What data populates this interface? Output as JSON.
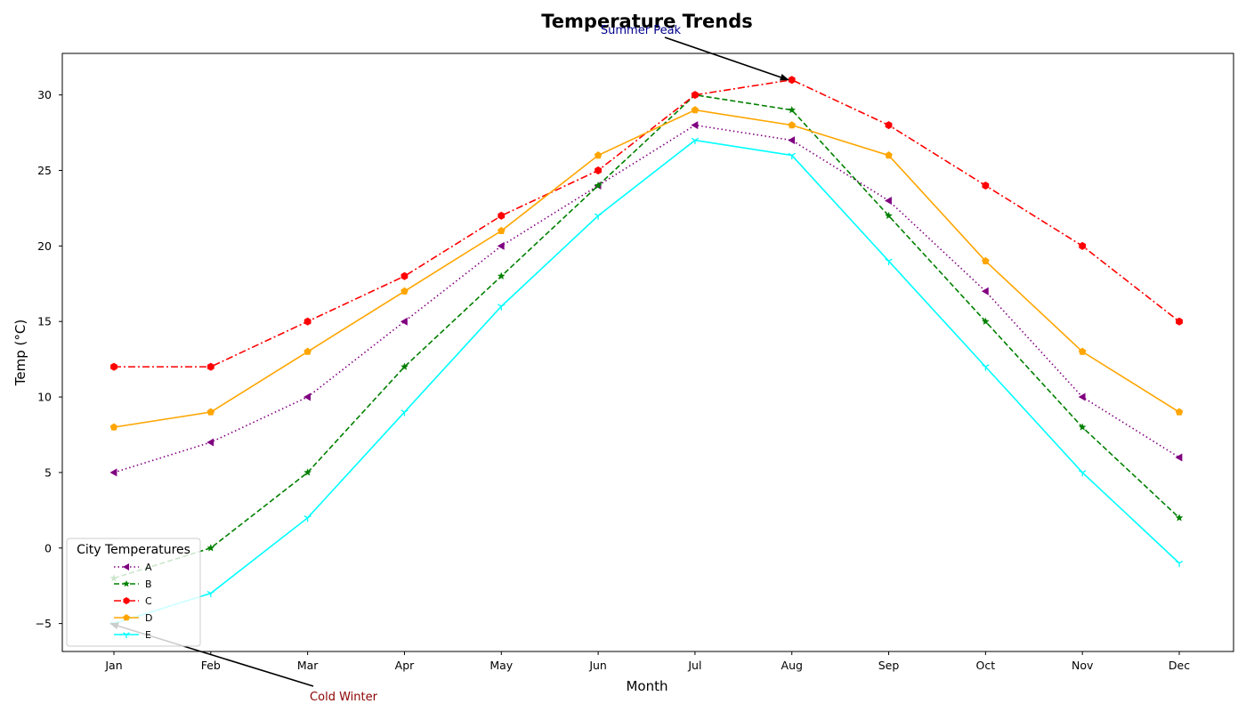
{
  "chart_data": {
    "type": "line",
    "title": "Temperature Trends",
    "xlabel": "Month",
    "ylabel": "Temp (°C)",
    "categories": [
      "Jan",
      "Feb",
      "Mar",
      "Apr",
      "May",
      "Jun",
      "Jul",
      "Aug",
      "Sep",
      "Oct",
      "Nov",
      "Dec"
    ],
    "ylim": [
      -6.85,
      32.75
    ],
    "yticks": [
      -5,
      0,
      5,
      10,
      15,
      20,
      25,
      30
    ],
    "ytick_labels": [
      "−5",
      "0",
      "5",
      "10",
      "15",
      "20",
      "25",
      "30"
    ],
    "grid": false,
    "legend": {
      "title": "City Temperatures",
      "location": "lower left"
    },
    "series": [
      {
        "name": "A",
        "color": "#800080",
        "linestyle": "dotted",
        "marker": "triangle-left",
        "values": [
          5,
          7,
          10,
          15,
          20,
          24,
          28,
          27,
          23,
          17,
          10,
          6
        ]
      },
      {
        "name": "B",
        "color": "#008000",
        "linestyle": "dashed",
        "marker": "star",
        "values": [
          -2,
          0,
          5,
          12,
          18,
          24,
          30,
          29,
          22,
          15,
          8,
          2
        ]
      },
      {
        "name": "C",
        "color": "#ff0000",
        "linestyle": "dashdot",
        "marker": "hexagon",
        "values": [
          12,
          12,
          15,
          18,
          22,
          25,
          30,
          31,
          28,
          24,
          20,
          15
        ]
      },
      {
        "name": "D",
        "color": "#ffa500",
        "linestyle": "solid",
        "marker": "pentagon",
        "values": [
          8,
          9,
          13,
          17,
          21,
          26,
          29,
          28,
          26,
          19,
          13,
          9
        ]
      },
      {
        "name": "E",
        "color": "#00ffff",
        "linestyle": "solid",
        "marker": "tri-down",
        "values": [
          -5,
          -3,
          2,
          9,
          16,
          22,
          27,
          26,
          19,
          12,
          5,
          -1
        ]
      }
    ],
    "annotations": [
      {
        "text": "Summer Peak",
        "color": "#00008b",
        "target": {
          "category": "Aug",
          "value": 31
        }
      },
      {
        "text": "Cold Winter",
        "color": "#8b0000",
        "target": {
          "category": "Jan",
          "value": -5
        }
      }
    ]
  }
}
